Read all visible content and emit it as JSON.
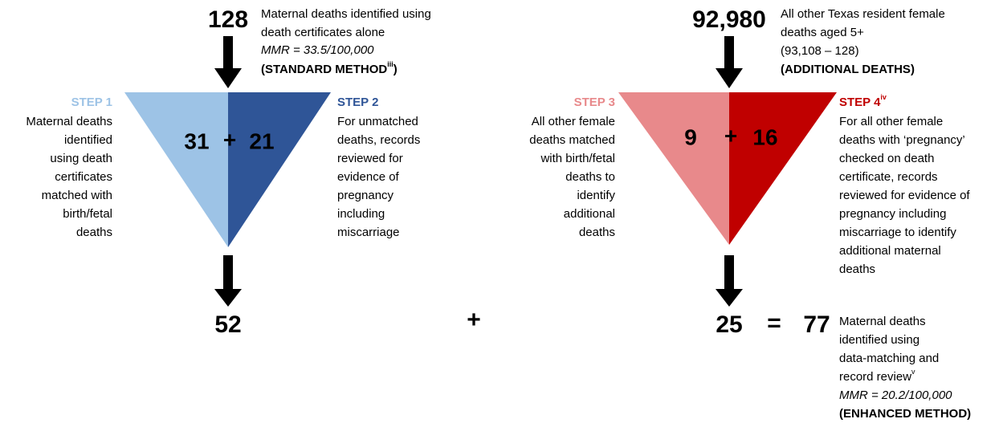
{
  "left": {
    "top_number": "128",
    "top_note": {
      "lines": [
        "Maternal deaths identified using",
        "death certificates alone"
      ],
      "mmr": "MMR = 33.5/100,000",
      "method": "(STANDARD METHOD",
      "method_sup": "iii",
      "method_end": ")"
    },
    "step1": {
      "label": "STEP 1",
      "lines": [
        "Maternal deaths",
        "identified",
        "using death",
        "certificates",
        "matched with",
        "birth/fetal",
        "deaths"
      ]
    },
    "step2": {
      "label": "STEP 2",
      "lines": [
        "For unmatched",
        "deaths, records",
        "reviewed for",
        "evidence of",
        "pregnancy",
        "including",
        "miscarriage"
      ]
    },
    "funnel": {
      "left": "31",
      "operator": "+",
      "right": "21"
    },
    "result": "52"
  },
  "plus": "+",
  "right": {
    "top_number": "92,980",
    "top_note": {
      "lines": [
        "All other Texas resident female",
        "deaths aged 5+",
        "(93,108 – 128)"
      ],
      "method": "(ADDITIONAL DEATHS)"
    },
    "step3": {
      "label": "STEP 3",
      "lines": [
        "All other female",
        "deaths matched",
        "with birth/fetal",
        "deaths to",
        "identify",
        "additional",
        "deaths"
      ]
    },
    "step4": {
      "label": "STEP 4",
      "label_sup": "iv",
      "lines": [
        "For all other female",
        "deaths with ‘pregnancy’",
        "checked on death",
        "certificate, records",
        "reviewed for evidence of",
        "pregnancy including",
        "miscarriage to identify",
        "additional maternal",
        "deaths"
      ]
    },
    "funnel": {
      "left": "9",
      "operator": "+",
      "right": "16"
    },
    "result": "25",
    "equals": "=",
    "total": "77",
    "bottom_note": {
      "lines": [
        "Maternal deaths",
        "identified using",
        "data-matching and"
      ],
      "last_line": "record review",
      "last_line_sup": "v",
      "mmr": "MMR = 20.2/100,000",
      "method": "(ENHANCED METHOD)"
    }
  }
}
